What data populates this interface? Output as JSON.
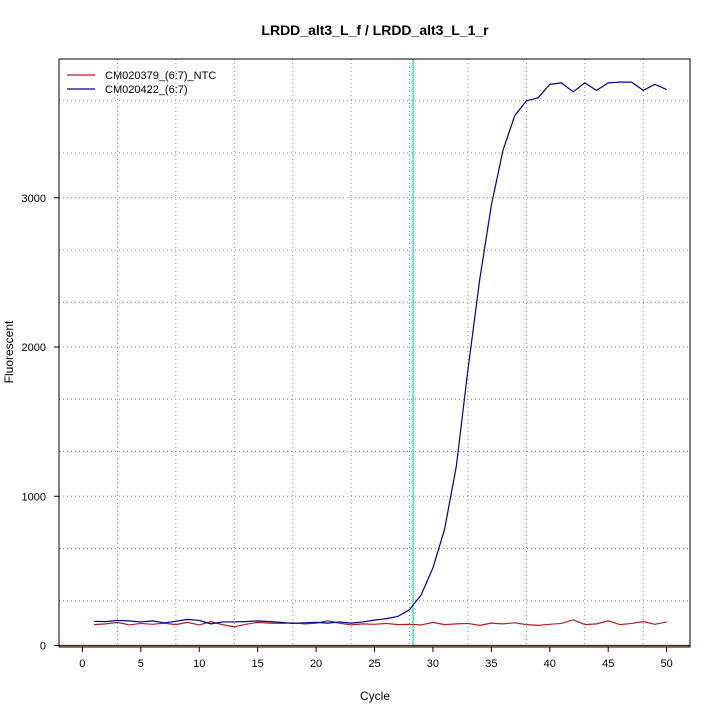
{
  "chart_data": {
    "type": "line",
    "title": "LRDD_alt3_L_f / LRDD_alt3_L_1_r",
    "xlabel": "Cycle",
    "ylabel": "Fluorescent",
    "xlim": [
      -2,
      52
    ],
    "ylim": [
      -10,
      3930
    ],
    "x_ticks": [
      0,
      5,
      10,
      15,
      20,
      25,
      30,
      35,
      40,
      45,
      50
    ],
    "y_ticks": [
      0,
      1000,
      2000,
      3000
    ],
    "grid": true,
    "grid_x": [
      3,
      8,
      13,
      18,
      23,
      28,
      33,
      38,
      43,
      48
    ],
    "grid_y": [
      0,
      300,
      650,
      1000,
      1300,
      1650,
      2000,
      2300,
      2650,
      3000,
      3300,
      3650
    ],
    "legend_position": "top-left",
    "threshold_cycle": 28.3,
    "threshold_color": "#40e0d0",
    "baseline": 0,
    "baseline_color": "#8b0000",
    "x": [
      1,
      2,
      3,
      4,
      5,
      6,
      7,
      8,
      9,
      10,
      11,
      12,
      13,
      14,
      15,
      16,
      17,
      18,
      19,
      20,
      21,
      22,
      23,
      24,
      25,
      26,
      27,
      28,
      29,
      30,
      31,
      32,
      33,
      34,
      35,
      36,
      37,
      38,
      39,
      40,
      41,
      42,
      43,
      44,
      45,
      46,
      47,
      48,
      49,
      50
    ],
    "series": [
      {
        "name": "CM020379_(6:7)_NTC",
        "color": "#b22222",
        "values": [
          140,
          145,
          155,
          138,
          148,
          142,
          150,
          140,
          155,
          138,
          160,
          140,
          125,
          142,
          155,
          150,
          148,
          152,
          145,
          150,
          165,
          150,
          138,
          145,
          142,
          148,
          140,
          142,
          138,
          155,
          140,
          145,
          148,
          135,
          150,
          145,
          152,
          140,
          135,
          142,
          148,
          172,
          140,
          145,
          165,
          140,
          148,
          160,
          142,
          158
        ]
      },
      {
        "name": "CM020422_(6:7)",
        "color": "#00008b",
        "values": [
          162,
          160,
          168,
          165,
          158,
          165,
          152,
          162,
          175,
          168,
          145,
          158,
          158,
          160,
          165,
          160,
          155,
          148,
          152,
          155,
          150,
          158,
          150,
          158,
          170,
          180,
          195,
          240,
          340,
          520,
          780,
          1200,
          1850,
          2450,
          2950,
          3320,
          3550,
          3650,
          3670,
          3760,
          3770,
          3710,
          3770,
          3720,
          3770,
          3775,
          3775,
          3720,
          3760,
          3725
        ]
      }
    ]
  }
}
